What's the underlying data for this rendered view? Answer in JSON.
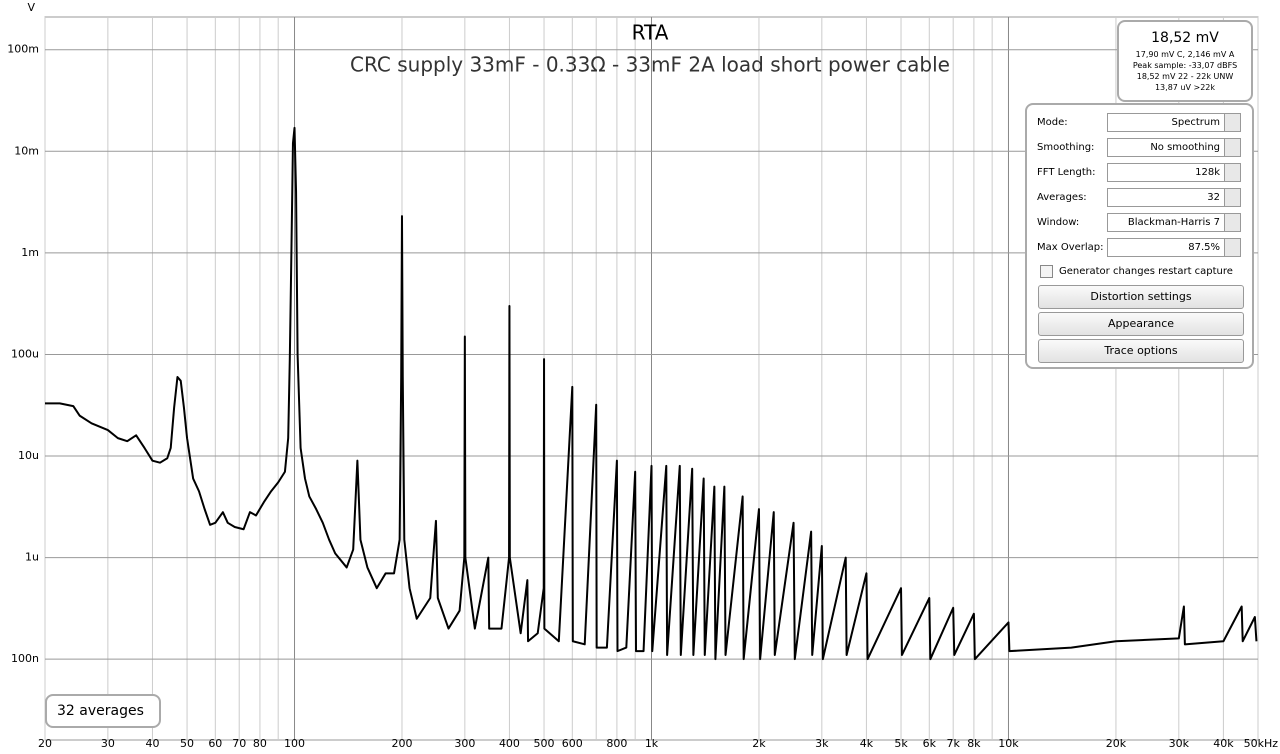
{
  "chart_data": {
    "type": "line",
    "title": "RTA",
    "subtitle": "CRC supply 33mF - 0.33Ω - 33mF 2A load short power cable",
    "y_unit": "V",
    "log_x": true,
    "log_y": true,
    "grid": true,
    "xlim": [
      20,
      50000
    ],
    "ylim": [
      1.6e-08,
      0.21
    ],
    "xticks": [
      20,
      30,
      40,
      50,
      60,
      70,
      80,
      100,
      200,
      300,
      400,
      500,
      600,
      800,
      {
        "value": 1000,
        "label": "1k"
      },
      {
        "value": 2000,
        "label": "2k"
      },
      {
        "value": 3000,
        "label": "3k"
      },
      {
        "value": 4000,
        "label": "4k"
      },
      {
        "value": 5000,
        "label": "5k"
      },
      {
        "value": 6000,
        "label": "6k"
      },
      {
        "value": 7000,
        "label": "7k"
      },
      {
        "value": 8000,
        "label": "8k"
      },
      {
        "value": 10000,
        "label": "10k"
      },
      {
        "value": 20000,
        "label": "20k"
      },
      {
        "value": 30000,
        "label": "30k"
      },
      {
        "value": 40000,
        "label": "40k"
      },
      {
        "value": 50000,
        "label": "50kHz"
      }
    ],
    "xminorticks": [
      90,
      700,
      900,
      9000
    ],
    "yticks": [
      {
        "value": 0.1,
        "label": "100m"
      },
      {
        "value": 0.01,
        "label": "10m"
      },
      {
        "value": 0.001,
        "label": "1m"
      },
      {
        "value": 0.0001,
        "label": "100u"
      },
      {
        "value": 1e-05,
        "label": "10u"
      },
      {
        "value": 1e-06,
        "label": "1u"
      },
      {
        "value": 1e-07,
        "label": "100n"
      }
    ],
    "x": [
      20,
      22,
      24,
      25,
      27,
      30,
      32,
      34,
      36,
      38,
      40,
      42,
      44,
      45,
      46,
      47,
      48,
      49,
      50,
      52,
      54,
      56,
      58,
      60,
      63,
      65,
      68,
      72,
      75,
      78,
      82,
      86,
      90,
      94,
      96,
      97,
      98,
      99,
      100,
      101,
      102,
      104,
      107,
      110,
      115,
      120,
      125,
      130,
      140,
      146,
      150,
      153,
      160,
      170,
      180,
      190,
      197,
      199,
      200,
      201,
      203,
      210,
      220,
      240,
      249,
      252,
      270,
      290,
      299,
      300,
      301,
      320,
      349,
      351,
      380,
      399,
      400,
      401,
      430,
      449,
      451,
      480,
      499,
      500,
      501,
      550,
      600,
      602,
      650,
      700,
      702,
      750,
      800,
      803,
      850,
      900,
      905,
      950,
      1000,
      1005,
      1100,
      1106,
      1200,
      1208,
      1300,
      1310,
      1400,
      1410,
      1500,
      1510,
      1600,
      1612,
      1800,
      1812,
      2000,
      2015,
      2200,
      2215,
      2500,
      2520,
      2800,
      2820,
      3000,
      3020,
      3500,
      3520,
      4000,
      4030,
      5000,
      5030,
      6000,
      6040,
      7000,
      7050,
      8000,
      8050,
      10000,
      10060,
      15000,
      20000,
      30000,
      31000,
      31200,
      40000,
      45000,
      45300,
      49000,
      49500
    ],
    "series": [
      {
        "color": "#000000",
        "values": [
          3.3e-05,
          3.3e-05,
          3.1e-05,
          2.5e-05,
          2.1e-05,
          1.8e-05,
          1.5e-05,
          1.4e-05,
          1.6e-05,
          1.2e-05,
          9e-06,
          8.6e-06,
          9.5e-06,
          1.2e-05,
          3e-05,
          6e-05,
          5.5e-05,
          3e-05,
          1.5e-05,
          6e-06,
          4.5e-06,
          3e-06,
          2.1e-06,
          2.2e-06,
          2.8e-06,
          2.2e-06,
          2e-06,
          1.9e-06,
          2.8e-06,
          2.6e-06,
          3.5e-06,
          4.5e-06,
          5.5e-06,
          7e-06,
          1.5e-05,
          9e-05,
          0.001,
          0.012,
          0.017,
          0.004,
          0.0001,
          1.2e-05,
          6e-06,
          4e-06,
          3e-06,
          2.2e-06,
          1.5e-06,
          1.1e-06,
          8e-07,
          1.2e-06,
          9e-06,
          1.5e-06,
          8e-07,
          5e-07,
          7e-07,
          7e-07,
          1.5e-06,
          6e-05,
          0.0023,
          6e-05,
          1.5e-06,
          5e-07,
          2.5e-07,
          4e-07,
          2.3e-06,
          4e-07,
          2e-07,
          3e-07,
          1e-06,
          0.00015,
          1e-06,
          2e-07,
          1e-06,
          2e-07,
          2e-07,
          1e-06,
          0.0003,
          1e-06,
          1.8e-07,
          6e-07,
          1.5e-07,
          1.8e-07,
          5e-07,
          9e-05,
          2e-07,
          1.5e-07,
          4.8e-05,
          1.5e-07,
          1.4e-07,
          3.2e-05,
          1.3e-07,
          1.3e-07,
          9e-06,
          1.2e-07,
          1.3e-07,
          7e-06,
          1.2e-07,
          1.2e-07,
          8e-06,
          1.2e-07,
          8e-06,
          1.1e-07,
          8e-06,
          1.1e-07,
          7.5e-06,
          1.1e-07,
          6e-06,
          1.1e-07,
          5e-06,
          1e-07,
          5e-06,
          1.1e-07,
          4e-06,
          1e-07,
          3e-06,
          1e-07,
          2.8e-06,
          1.1e-07,
          2.2e-06,
          1e-07,
          1.8e-06,
          1.1e-07,
          1.3e-06,
          1e-07,
          1e-06,
          1.1e-07,
          7e-07,
          1e-07,
          5e-07,
          1.1e-07,
          4e-07,
          1e-07,
          3.2e-07,
          1.1e-07,
          2.8e-07,
          1e-07,
          2.3e-07,
          1.2e-07,
          1.3e-07,
          1.5e-07,
          1.6e-07,
          3.3e-07,
          1.4e-07,
          1.5e-07,
          3.3e-07,
          1.5e-07,
          2.6e-07,
          1.5e-07
        ]
      }
    ],
    "averages_label": "32 averages"
  },
  "meter": {
    "value": "18,52 mV",
    "lines": [
      "17,90 mV C, 2,146 mV A",
      "Peak sample: -33,07 dBFS",
      "18,52 mV 22 - 22k UNW",
      "13,87 uV >22k"
    ]
  },
  "controls": [
    {
      "label": "Mode:",
      "value": "Spectrum"
    },
    {
      "label": "Smoothing:",
      "value": "No  smoothing"
    },
    {
      "label": "FFT Length:",
      "value": "128k"
    },
    {
      "label": "Averages:",
      "value": "32"
    },
    {
      "label": "Window:",
      "value": "Blackman-Harris 7"
    },
    {
      "label": "Max Overlap:",
      "value": "87.5%"
    }
  ],
  "checkbox": "Generator changes restart capture",
  "buttons": [
    "Distortion settings",
    "Appearance",
    "Trace options"
  ]
}
